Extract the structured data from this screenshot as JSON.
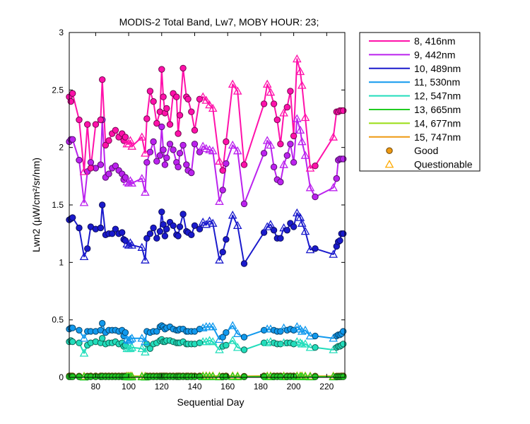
{
  "chart_data": {
    "type": "line",
    "title": "MODIS-2 Total Band, Lw7, MOBY HOUR: 23;",
    "xlabel": "Sequential Day",
    "ylabel": "Lwn2 (µW/cm²/sr/nm)",
    "xlim": [
      64,
      231
    ],
    "ylim": [
      0,
      3
    ],
    "xticks": [
      80,
      100,
      120,
      140,
      160,
      180,
      200,
      220
    ],
    "yticks": [
      0,
      0.5,
      1,
      1.5,
      2,
      2.5,
      3
    ],
    "grid": false,
    "legend_position": "outside-right",
    "x": [
      64,
      65,
      66,
      70,
      73,
      75,
      77,
      80,
      83,
      84,
      86,
      88,
      90,
      92,
      94,
      96,
      97,
      98,
      99,
      100,
      101,
      102,
      108,
      110,
      111,
      113,
      115,
      117,
      119,
      120,
      121,
      122,
      123,
      125,
      127,
      129,
      130,
      131,
      133,
      135,
      136,
      138,
      140,
      143,
      145,
      147,
      149,
      151,
      155,
      157,
      159,
      163,
      166,
      170,
      182,
      184,
      186,
      188,
      190,
      192,
      194,
      196,
      198,
      200,
      202,
      204,
      205,
      207,
      210,
      213,
      224,
      226,
      227,
      228,
      229,
      230
    ],
    "quality": [
      "G",
      "G",
      "G",
      "G",
      "Q",
      "G",
      "G",
      "G",
      "G",
      "G",
      "G",
      "G",
      "G",
      "G",
      "G",
      "G",
      "G",
      "G",
      "Q",
      "Q",
      "Q",
      "Q",
      "Q",
      "Q",
      "G",
      "G",
      "G",
      "G",
      "G",
      "G",
      "G",
      "G",
      "G",
      "G",
      "G",
      "G",
      "G",
      "G",
      "G",
      "G",
      "G",
      "G",
      "G",
      "G",
      "Q",
      "Q",
      "Q",
      "Q",
      "Q",
      "G",
      "G",
      "Q",
      "Q",
      "G",
      "G",
      "Q",
      "Q",
      "G",
      "G",
      "G",
      "Q",
      "G",
      "G",
      "G",
      "Q",
      "Q",
      "Q",
      "Q",
      "Q",
      "G",
      "Q",
      "G",
      "G",
      "G",
      "G",
      "G"
    ],
    "series": [
      {
        "name": "8, 416nm",
        "color": "#ff11aa",
        "values": [
          2.44,
          2.4,
          2.47,
          2.24,
          1.79,
          2.2,
          1.82,
          2.2,
          2.24,
          2.59,
          2.02,
          2.06,
          2.12,
          2.15,
          2.09,
          2.12,
          2.06,
          2.09,
          2.03,
          2.03,
          2.06,
          2.01,
          2.09,
          1.95,
          2.25,
          2.49,
          2.4,
          2.21,
          2.31,
          2.68,
          2.44,
          2.3,
          2.34,
          2.2,
          2.47,
          2.44,
          2.12,
          2.28,
          2.69,
          2.44,
          2.42,
          2.31,
          2.15,
          2.42,
          2.44,
          2.41,
          2.37,
          2.34,
          1.88,
          1.8,
          2.05,
          2.55,
          2.49,
          1.85,
          2.38,
          2.55,
          2.48,
          2.38,
          2.24,
          2.03,
          2.3,
          2.35,
          2.49,
          2.1,
          2.77,
          2.66,
          2.54,
          2.26,
          1.82,
          1.84,
          2.09,
          2.31,
          2.31,
          2.32,
          2.32,
          2.32
        ]
      },
      {
        "name": "9, 442nm",
        "color": "#bb22ee",
        "values": [
          2.05,
          2.07,
          2.07,
          1.89,
          1.52,
          1.79,
          1.87,
          1.82,
          1.85,
          2.24,
          1.74,
          1.77,
          1.82,
          1.84,
          1.8,
          1.77,
          1.72,
          1.74,
          1.7,
          1.69,
          1.71,
          1.69,
          1.73,
          1.61,
          1.87,
          1.96,
          2.05,
          1.88,
          1.93,
          2.18,
          1.98,
          1.85,
          1.91,
          2.03,
          1.98,
          1.87,
          1.83,
          1.95,
          2.02,
          1.85,
          1.8,
          1.78,
          2.03,
          1.96,
          2.01,
          1.99,
          1.98,
          1.97,
          1.53,
          1.63,
          1.86,
          2.02,
          1.97,
          1.51,
          1.95,
          2.06,
          2.02,
          1.83,
          1.72,
          1.7,
          1.85,
          1.93,
          2.03,
          1.87,
          2.25,
          2.15,
          2.05,
          1.93,
          1.65,
          1.57,
          1.65,
          1.73,
          1.89,
          1.9,
          1.9,
          1.9
        ]
      },
      {
        "name": "10, 489nm",
        "color": "#1a1acc",
        "values": [
          1.37,
          1.38,
          1.39,
          1.3,
          1.05,
          1.12,
          1.31,
          1.29,
          1.3,
          1.5,
          1.24,
          1.25,
          1.25,
          1.29,
          1.25,
          1.26,
          1.2,
          1.19,
          1.16,
          1.15,
          1.17,
          1.15,
          1.13,
          1.02,
          1.21,
          1.25,
          1.3,
          1.21,
          1.27,
          1.44,
          1.33,
          1.23,
          1.29,
          1.35,
          1.32,
          1.24,
          1.23,
          1.31,
          1.42,
          1.27,
          1.26,
          1.24,
          1.32,
          1.29,
          1.35,
          1.33,
          1.36,
          1.34,
          1.02,
          1.09,
          1.2,
          1.41,
          1.32,
          0.99,
          1.26,
          1.31,
          1.33,
          1.28,
          1.21,
          1.21,
          1.3,
          1.28,
          1.34,
          1.31,
          1.43,
          1.39,
          1.34,
          1.27,
          1.11,
          1.12,
          1.07,
          1.14,
          1.18,
          1.19,
          1.25,
          1.25
        ]
      },
      {
        "name": "11, 530nm",
        "color": "#1199ee",
        "values": [
          0.42,
          0.43,
          0.43,
          0.41,
          0.34,
          0.4,
          0.4,
          0.4,
          0.41,
          0.47,
          0.39,
          0.41,
          0.41,
          0.41,
          0.4,
          0.41,
          0.36,
          0.39,
          0.33,
          0.32,
          0.33,
          0.34,
          0.34,
          0.31,
          0.4,
          0.39,
          0.4,
          0.4,
          0.44,
          0.45,
          0.44,
          0.42,
          0.43,
          0.44,
          0.42,
          0.41,
          0.41,
          0.42,
          0.42,
          0.4,
          0.4,
          0.4,
          0.4,
          0.42,
          0.43,
          0.44,
          0.44,
          0.44,
          0.33,
          0.35,
          0.39,
          0.45,
          0.38,
          0.35,
          0.41,
          0.42,
          0.42,
          0.41,
          0.4,
          0.4,
          0.43,
          0.41,
          0.42,
          0.41,
          0.44,
          0.42,
          0.4,
          0.41,
          0.36,
          0.36,
          0.34,
          0.36,
          0.37,
          0.37,
          0.38,
          0.4
        ]
      },
      {
        "name": "12, 547nm",
        "color": "#22ddbb",
        "values": [
          0.31,
          0.32,
          0.31,
          0.3,
          0.21,
          0.28,
          0.3,
          0.31,
          0.3,
          0.34,
          0.29,
          0.3,
          0.3,
          0.31,
          0.29,
          0.3,
          0.27,
          0.28,
          0.25,
          0.25,
          0.25,
          0.26,
          0.25,
          0.22,
          0.29,
          0.25,
          0.29,
          0.3,
          0.32,
          0.33,
          0.31,
          0.31,
          0.32,
          0.32,
          0.31,
          0.3,
          0.3,
          0.3,
          0.31,
          0.29,
          0.29,
          0.29,
          0.29,
          0.3,
          0.31,
          0.31,
          0.32,
          0.31,
          0.24,
          0.27,
          0.28,
          0.32,
          0.26,
          0.24,
          0.3,
          0.3,
          0.31,
          0.3,
          0.29,
          0.29,
          0.3,
          0.3,
          0.3,
          0.29,
          0.31,
          0.3,
          0.29,
          0.29,
          0.26,
          0.26,
          0.24,
          0.26,
          0.27,
          0.27,
          0.28,
          0.29
        ]
      },
      {
        "name": "13, 665nm",
        "color": "#22cc22",
        "values": [
          0.005,
          0.005,
          0.005,
          0.005,
          0.003,
          0.004,
          0.005,
          0.005,
          0.005,
          0.006,
          0.005,
          0.005,
          0.005,
          0.005,
          0.005,
          0.005,
          0.004,
          0.005,
          0.004,
          0.004,
          0.004,
          0.004,
          0.004,
          0.003,
          0.005,
          0.005,
          0.005,
          0.005,
          0.006,
          0.006,
          0.006,
          0.005,
          0.005,
          0.006,
          0.005,
          0.005,
          0.005,
          0.005,
          0.006,
          0.005,
          0.005,
          0.005,
          0.005,
          0.005,
          0.006,
          0.006,
          0.006,
          0.006,
          0.004,
          0.004,
          0.005,
          0.006,
          0.005,
          0.004,
          0.005,
          0.005,
          0.005,
          0.005,
          0.005,
          0.005,
          0.005,
          0.005,
          0.005,
          0.005,
          0.006,
          0.005,
          0.005,
          0.005,
          0.004,
          0.004,
          0.004,
          0.004,
          0.004,
          0.004,
          0.005,
          0.005
        ]
      },
      {
        "name": "14, 677nm",
        "color": "#99dd11",
        "values": [
          0.008,
          0.008,
          0.008,
          0.008,
          0.006,
          0.007,
          0.008,
          0.008,
          0.008,
          0.009,
          0.008,
          0.008,
          0.008,
          0.008,
          0.008,
          0.008,
          0.007,
          0.008,
          0.007,
          0.007,
          0.007,
          0.007,
          0.007,
          0.006,
          0.008,
          0.008,
          0.008,
          0.008,
          0.009,
          0.009,
          0.009,
          0.008,
          0.008,
          0.009,
          0.008,
          0.008,
          0.008,
          0.008,
          0.009,
          0.008,
          0.008,
          0.008,
          0.008,
          0.008,
          0.009,
          0.009,
          0.009,
          0.009,
          0.006,
          0.007,
          0.008,
          0.009,
          0.008,
          0.006,
          0.008,
          0.008,
          0.008,
          0.008,
          0.008,
          0.008,
          0.008,
          0.008,
          0.008,
          0.008,
          0.009,
          0.008,
          0.008,
          0.008,
          0.007,
          0.007,
          0.007,
          0.007,
          0.007,
          0.007,
          0.008,
          0.008
        ]
      },
      {
        "name": "15, 747nm",
        "color": "#ee9911",
        "values": [
          0.012,
          0.012,
          0.012,
          0.011,
          0.01,
          0.011,
          0.012,
          0.012,
          0.012,
          0.013,
          0.012,
          0.012,
          0.012,
          0.012,
          0.012,
          0.012,
          0.011,
          0.012,
          0.011,
          0.011,
          0.011,
          0.011,
          0.011,
          0.01,
          0.012,
          0.012,
          0.012,
          0.012,
          0.013,
          0.013,
          0.013,
          0.012,
          0.012,
          0.013,
          0.012,
          0.012,
          0.012,
          0.012,
          0.013,
          0.012,
          0.012,
          0.012,
          0.012,
          0.012,
          0.013,
          0.013,
          0.013,
          0.013,
          0.01,
          0.011,
          0.012,
          0.013,
          0.012,
          0.01,
          0.012,
          0.012,
          0.012,
          0.012,
          0.012,
          0.012,
          0.012,
          0.012,
          0.012,
          0.012,
          0.013,
          0.012,
          0.012,
          0.012,
          0.011,
          0.011,
          0.011,
          0.011,
          0.011,
          0.011,
          0.012,
          0.012
        ]
      }
    ],
    "legend": {
      "entries": [
        "8, 416nm",
        "9, 442nm",
        "10, 489nm",
        "11, 530nm",
        "12, 547nm",
        "13, 665nm",
        "14, 677nm",
        "15, 747nm"
      ],
      "good_label": "Good",
      "questionable_label": "Questionable",
      "good_color": "#ee9911",
      "questionable_color": "#ffaa00"
    }
  }
}
